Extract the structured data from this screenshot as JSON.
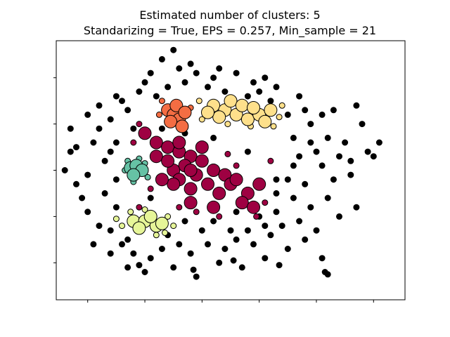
{
  "chart_data": {
    "type": "scatter",
    "title_line1": "Estimated number of clusters: 5",
    "title_line2": "Standarizing = True, EPS = 0.257, Min_sample = 21",
    "xlabel": "",
    "ylabel": "",
    "xlim": [
      -2.55,
      3.55
    ],
    "ylim": [
      -2.8,
      2.8
    ],
    "x_ticks": [
      -2,
      -1,
      0,
      1,
      2,
      3
    ],
    "y_ticks": [
      -2,
      -1,
      0,
      1,
      2,
      3
    ],
    "tick_labels_visible": false,
    "grid": false,
    "legend": "none",
    "marker_edge_color": "#000000",
    "core_marker_size": "large",
    "border_marker_size": "small",
    "clusters": [
      {
        "label": 0,
        "color": "#9e0142",
        "core": [
          [
            -1.0,
            0.8
          ],
          [
            -0.8,
            0.6
          ],
          [
            -0.6,
            0.5
          ],
          [
            -0.4,
            0.4
          ],
          [
            -0.2,
            0.3
          ],
          [
            0.0,
            0.2
          ],
          [
            0.2,
            0.0
          ],
          [
            0.4,
            -0.1
          ],
          [
            -0.3,
            0.1
          ],
          [
            -0.5,
            0.0
          ],
          [
            -0.1,
            -0.1
          ],
          [
            0.1,
            -0.3
          ],
          [
            -0.2,
            -0.4
          ],
          [
            -0.4,
            -0.2
          ],
          [
            0.3,
            -0.5
          ],
          [
            0.5,
            -0.3
          ],
          [
            0.6,
            -0.2
          ],
          [
            0.8,
            -0.5
          ],
          [
            1.0,
            -0.3
          ],
          [
            0.7,
            -0.7
          ],
          [
            0.9,
            -0.8
          ],
          [
            0.2,
            -0.8
          ],
          [
            -0.2,
            -0.7
          ],
          [
            -0.5,
            -0.3
          ],
          [
            -0.7,
            -0.2
          ],
          [
            -0.8,
            0.3
          ],
          [
            -0.6,
            0.2
          ],
          [
            -0.4,
            0.6
          ],
          [
            0.0,
            0.5
          ],
          [
            -0.2,
            0.0
          ]
        ],
        "border": [
          [
            -1.1,
            1.0
          ],
          [
            -1.2,
            0.6
          ],
          [
            -0.9,
            -0.4
          ],
          [
            1.1,
            -0.7
          ],
          [
            1.2,
            0.2
          ],
          [
            0.6,
            0.1
          ],
          [
            -0.1,
            -0.9
          ],
          [
            0.3,
            -1.0
          ],
          [
            -1.1,
            -0.8
          ],
          [
            0.95,
            -1.0
          ],
          [
            -0.4,
            -0.8
          ],
          [
            0.45,
            0.35
          ]
        ]
      },
      {
        "label": 1,
        "color": "#f46d43",
        "core": [
          [
            -0.6,
            1.3
          ],
          [
            -0.5,
            1.2
          ],
          [
            -0.4,
            1.1
          ],
          [
            -0.45,
            1.4
          ],
          [
            -0.3,
            1.25
          ],
          [
            -0.55,
            1.05
          ],
          [
            -0.35,
            0.95
          ]
        ],
        "border": [
          [
            -0.7,
            1.5
          ],
          [
            -0.2,
            1.35
          ],
          [
            -0.75,
            1.2
          ]
        ]
      },
      {
        "label": 2,
        "color": "#fee08b",
        "core": [
          [
            0.2,
            1.4
          ],
          [
            0.4,
            1.3
          ],
          [
            0.6,
            1.2
          ],
          [
            0.8,
            1.1
          ],
          [
            1.0,
            1.2
          ],
          [
            1.1,
            1.05
          ],
          [
            0.5,
            1.5
          ],
          [
            0.3,
            1.15
          ],
          [
            0.7,
            1.4
          ],
          [
            0.9,
            1.35
          ],
          [
            1.2,
            1.3
          ],
          [
            0.1,
            1.25
          ]
        ],
        "border": [
          [
            -0.05,
            1.5
          ],
          [
            1.35,
            1.15
          ],
          [
            1.25,
            0.95
          ],
          [
            0.45,
            1.0
          ],
          [
            0.85,
            0.95
          ],
          [
            0.0,
            1.1
          ],
          [
            1.4,
            1.4
          ]
        ]
      },
      {
        "label": 3,
        "color": "#66c2a5",
        "core": [
          [
            -1.25,
            0.05
          ],
          [
            -1.15,
            0.1
          ],
          [
            -1.05,
            0.0
          ],
          [
            -1.2,
            -0.1
          ]
        ],
        "border": [
          [
            -1.35,
            0.0
          ],
          [
            -1.1,
            0.25
          ],
          [
            -0.95,
            -0.15
          ],
          [
            -1.3,
            0.2
          ],
          [
            -1.0,
            0.15
          ],
          [
            -1.2,
            -0.25
          ]
        ]
      },
      {
        "label": 4,
        "color": "#e6f598",
        "core": [
          [
            -1.2,
            -1.1
          ],
          [
            -1.0,
            -1.1
          ],
          [
            -0.8,
            -1.2
          ],
          [
            -0.9,
            -1.0
          ],
          [
            -1.1,
            -1.25
          ],
          [
            -0.7,
            -1.15
          ]
        ],
        "border": [
          [
            -1.5,
            -1.05
          ],
          [
            -1.4,
            -1.2
          ],
          [
            -0.6,
            -1.0
          ],
          [
            -0.5,
            -1.2
          ],
          [
            -1.0,
            -0.85
          ],
          [
            -0.8,
            -1.4
          ],
          [
            -1.25,
            -0.9
          ],
          [
            -0.65,
            -1.35
          ]
        ]
      }
    ],
    "noise": {
      "color": "#000000",
      "points": [
        [
          -2.0,
          1.2
        ],
        [
          -2.3,
          0.4
        ],
        [
          -1.8,
          0.9
        ],
        [
          -1.5,
          0.6
        ],
        [
          -2.1,
          -0.6
        ],
        [
          -1.9,
          -1.6
        ],
        [
          -1.6,
          -1.8
        ],
        [
          -1.3,
          -2.1
        ],
        [
          -1.0,
          -2.2
        ],
        [
          -0.5,
          -2.1
        ],
        [
          -0.1,
          -2.3
        ],
        [
          0.3,
          -2.0
        ],
        [
          0.7,
          -2.1
        ],
        [
          1.1,
          -1.9
        ],
        [
          1.5,
          -1.7
        ],
        [
          2.0,
          -1.3
        ],
        [
          2.2,
          -0.6
        ],
        [
          2.6,
          -0.1
        ],
        [
          2.9,
          0.4
        ],
        [
          3.1,
          0.6
        ],
        [
          2.7,
          1.4
        ],
        [
          2.3,
          1.3
        ],
        [
          1.9,
          1.0
        ],
        [
          1.7,
          1.6
        ],
        [
          1.3,
          1.8
        ],
        [
          1.1,
          2.0
        ],
        [
          0.9,
          1.9
        ],
        [
          0.6,
          2.1
        ],
        [
          0.2,
          2.0
        ],
        [
          -0.2,
          2.3
        ],
        [
          -0.5,
          2.6
        ],
        [
          -0.9,
          2.1
        ],
        [
          -1.1,
          1.7
        ],
        [
          -1.5,
          1.6
        ],
        [
          -1.8,
          1.4
        ],
        [
          -2.3,
          0.9
        ],
        [
          -2.2,
          -0.3
        ],
        [
          -2.0,
          -0.1
        ],
        [
          -1.7,
          -0.5
        ],
        [
          -1.6,
          -1.3
        ],
        [
          -1.5,
          -0.8
        ],
        [
          -2.0,
          -0.9
        ],
        [
          -1.4,
          -1.6
        ],
        [
          -1.2,
          -1.8
        ],
        [
          -0.9,
          -1.9
        ],
        [
          -0.7,
          -1.7
        ],
        [
          -0.4,
          -1.6
        ],
        [
          -0.2,
          -1.8
        ],
        [
          0.1,
          -1.6
        ],
        [
          0.4,
          -1.7
        ],
        [
          0.6,
          -1.5
        ],
        [
          0.9,
          -1.6
        ],
        [
          1.2,
          -1.4
        ],
        [
          1.4,
          -1.2
        ],
        [
          1.7,
          -1.1
        ],
        [
          1.9,
          -0.8
        ],
        [
          1.6,
          -0.6
        ],
        [
          1.3,
          -0.5
        ],
        [
          1.5,
          -0.2
        ],
        [
          1.8,
          -0.3
        ],
        [
          2.1,
          0.1
        ],
        [
          1.7,
          0.3
        ],
        [
          1.9,
          0.6
        ],
        [
          2.2,
          0.7
        ],
        [
          2.5,
          0.6
        ],
        [
          2.4,
          0.3
        ],
        [
          2.0,
          0.4
        ],
        [
          1.6,
          0.7
        ],
        [
          1.5,
          1.2
        ],
        [
          1.2,
          1.5
        ],
        [
          0.8,
          1.6
        ],
        [
          0.4,
          1.7
        ],
        [
          0.1,
          1.8
        ],
        [
          -0.3,
          1.9
        ],
        [
          -0.6,
          1.8
        ],
        [
          -0.8,
          1.6
        ],
        [
          -1.3,
          1.3
        ],
        [
          -1.6,
          1.1
        ],
        [
          -1.9,
          0.6
        ],
        [
          -1.7,
          0.2
        ],
        [
          -1.5,
          -0.2
        ],
        [
          -1.8,
          -1.2
        ],
        [
          -1.3,
          -1.5
        ],
        [
          -0.6,
          -1.4
        ],
        [
          0.0,
          -1.3
        ],
        [
          0.5,
          -1.3
        ],
        [
          0.8,
          -1.3
        ],
        [
          1.1,
          -1.2
        ],
        [
          1.3,
          -0.9
        ],
        [
          1.8,
          -1.5
        ],
        [
          2.4,
          -1.0
        ],
        [
          2.7,
          -0.8
        ],
        [
          2.3,
          -0.2
        ],
        [
          2.6,
          0.2
        ],
        [
          2.8,
          1.0
        ],
        [
          2.1,
          1.2
        ],
        [
          1.8,
          1.3
        ],
        [
          1.0,
          1.7
        ],
        [
          0.3,
          2.2
        ],
        [
          -0.1,
          2.1
        ],
        [
          -0.4,
          2.2
        ],
        [
          -0.7,
          2.4
        ],
        [
          -1.0,
          1.9
        ],
        [
          -1.4,
          1.5
        ],
        [
          -1.2,
          0.9
        ],
        [
          -0.9,
          -0.6
        ],
        [
          -0.3,
          -1.1
        ],
        [
          0.2,
          -1.1
        ],
        [
          0.6,
          -0.9
        ],
        [
          1.0,
          -1.0
        ],
        [
          1.3,
          -0.2
        ],
        [
          1.6,
          0.1
        ],
        [
          0.8,
          0.4
        ],
        [
          0.2,
          0.7
        ],
        [
          -0.3,
          0.8
        ],
        [
          -0.7,
          0.9
        ],
        [
          -2.4,
          0.0
        ],
        [
          -2.2,
          0.5
        ],
        [
          2.1,
          -1.9
        ],
        [
          -1.6,
          0.4
        ],
        [
          -0.15,
          -2.15
        ],
        [
          0.55,
          -1.95
        ],
        [
          1.35,
          -2.05
        ],
        [
          -1.1,
          -2.05
        ],
        [
          2.15,
          -2.2
        ],
        [
          2.2,
          -2.25
        ],
        [
          3.0,
          0.3
        ]
      ]
    }
  }
}
